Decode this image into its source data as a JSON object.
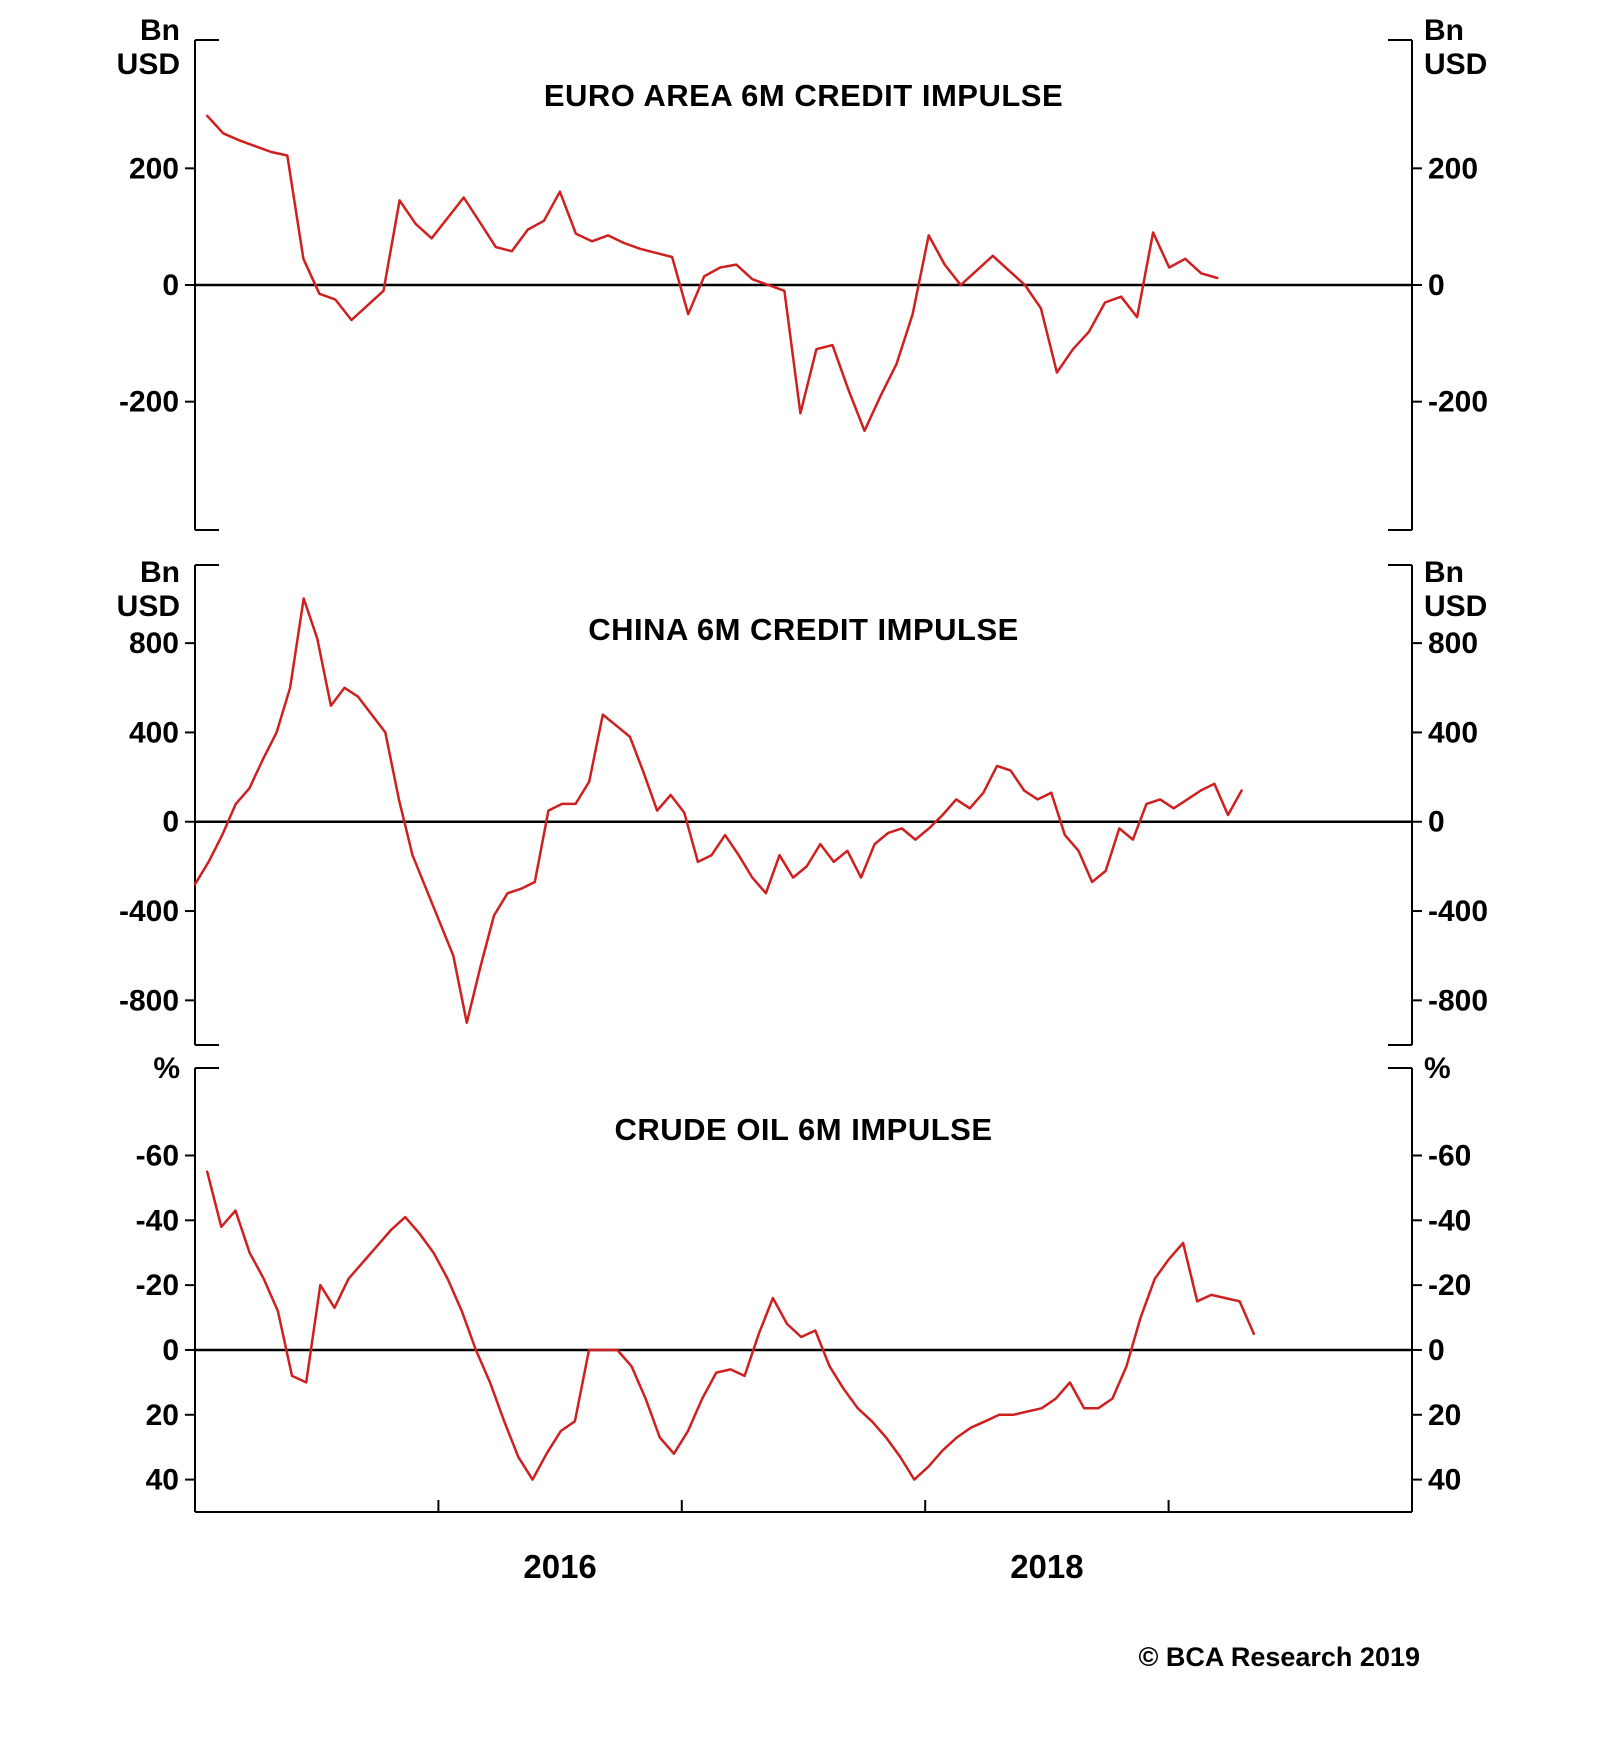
{
  "page": {
    "copyright": "© BCA Research 2019"
  },
  "x_axis": {
    "xlim": [
      2015.0,
      2020.0
    ],
    "ticks": [
      2016,
      2017,
      2018,
      2019
    ],
    "labels": [
      {
        "text": "2016",
        "x": 2016.5
      },
      {
        "text": "2018",
        "x": 2018.5
      }
    ]
  },
  "chart_data": [
    {
      "type": "line",
      "title": "EURO AREA 6M CREDIT IMPULSE",
      "unit": "Bn USD",
      "unit_lines": [
        "Bn",
        "USD"
      ],
      "line_color": "#cf2020",
      "yticks": [
        200,
        0,
        -200
      ],
      "ylim": [
        -420,
        420
      ],
      "y_inverted": false,
      "x_start": 2015.05,
      "x_end": 2019.2,
      "values": [
        290,
        260,
        248,
        238,
        228,
        222,
        45,
        -15,
        -25,
        -60,
        -35,
        -10,
        145,
        105,
        80,
        115,
        150,
        108,
        65,
        58,
        95,
        110,
        160,
        88,
        75,
        85,
        72,
        62,
        55,
        48,
        -50,
        15,
        30,
        35,
        10,
        0,
        -10,
        -220,
        -110,
        -103,
        -180,
        -250,
        -190,
        -135,
        -50,
        85,
        35,
        0,
        25,
        50,
        25,
        0,
        -40,
        -150,
        -110,
        -80,
        -30,
        -20,
        -55,
        90,
        30,
        45,
        20,
        12
      ]
    },
    {
      "type": "line",
      "title": "CHINA 6M CREDIT IMPULSE",
      "unit": "Bn USD",
      "unit_lines": [
        "Bn",
        "USD"
      ],
      "line_color": "#cf2020",
      "yticks": [
        800,
        400,
        0,
        -400,
        -800
      ],
      "ylim": [
        -1000,
        1150
      ],
      "y_inverted": false,
      "x_start": 2015.0,
      "x_end": 2019.3,
      "values": [
        -280,
        -180,
        -60,
        80,
        150,
        280,
        400,
        600,
        1000,
        820,
        520,
        600,
        560,
        480,
        400,
        100,
        -150,
        -300,
        -450,
        -600,
        -900,
        -650,
        -420,
        -320,
        -300,
        -270,
        50,
        80,
        80,
        180,
        480,
        430,
        380,
        220,
        50,
        120,
        40,
        -180,
        -150,
        -60,
        -150,
        -250,
        -320,
        -150,
        -250,
        -200,
        -100,
        -180,
        -130,
        -250,
        -100,
        -50,
        -30,
        -80,
        -30,
        30,
        100,
        60,
        130,
        250,
        230,
        140,
        100,
        130,
        -60,
        -130,
        -270,
        -220,
        -30,
        -80,
        80,
        100,
        60,
        100,
        140,
        170,
        30,
        140
      ]
    },
    {
      "type": "line",
      "title": "CRUDE OIL 6M IMPULSE",
      "unit": "%",
      "unit_lines": [
        "%"
      ],
      "line_color": "#cf2020",
      "yticks": [
        -60,
        -40,
        -20,
        0,
        20,
        40
      ],
      "ylim": [
        -87,
        50
      ],
      "y_inverted": true,
      "x_start": 2015.05,
      "x_end": 2019.35,
      "values": [
        -55,
        -38,
        -43,
        -30,
        -22,
        -12,
        8,
        10,
        -20,
        -13,
        -22,
        -27,
        -32,
        -37,
        -41,
        -36,
        -30,
        -22,
        -12,
        0,
        10,
        22,
        33,
        40,
        32,
        25,
        22,
        0,
        0,
        0,
        5,
        15,
        27,
        32,
        25,
        15,
        7,
        6,
        8,
        -5,
        -16,
        -8,
        -4,
        -6,
        5,
        12,
        18,
        22,
        27,
        33,
        40,
        36,
        31,
        27,
        24,
        22,
        20,
        20,
        19,
        18,
        15,
        10,
        18,
        18,
        15,
        5,
        -10,
        -22,
        -28,
        -33,
        -15,
        -17,
        -16,
        -15,
        -5
      ]
    }
  ]
}
